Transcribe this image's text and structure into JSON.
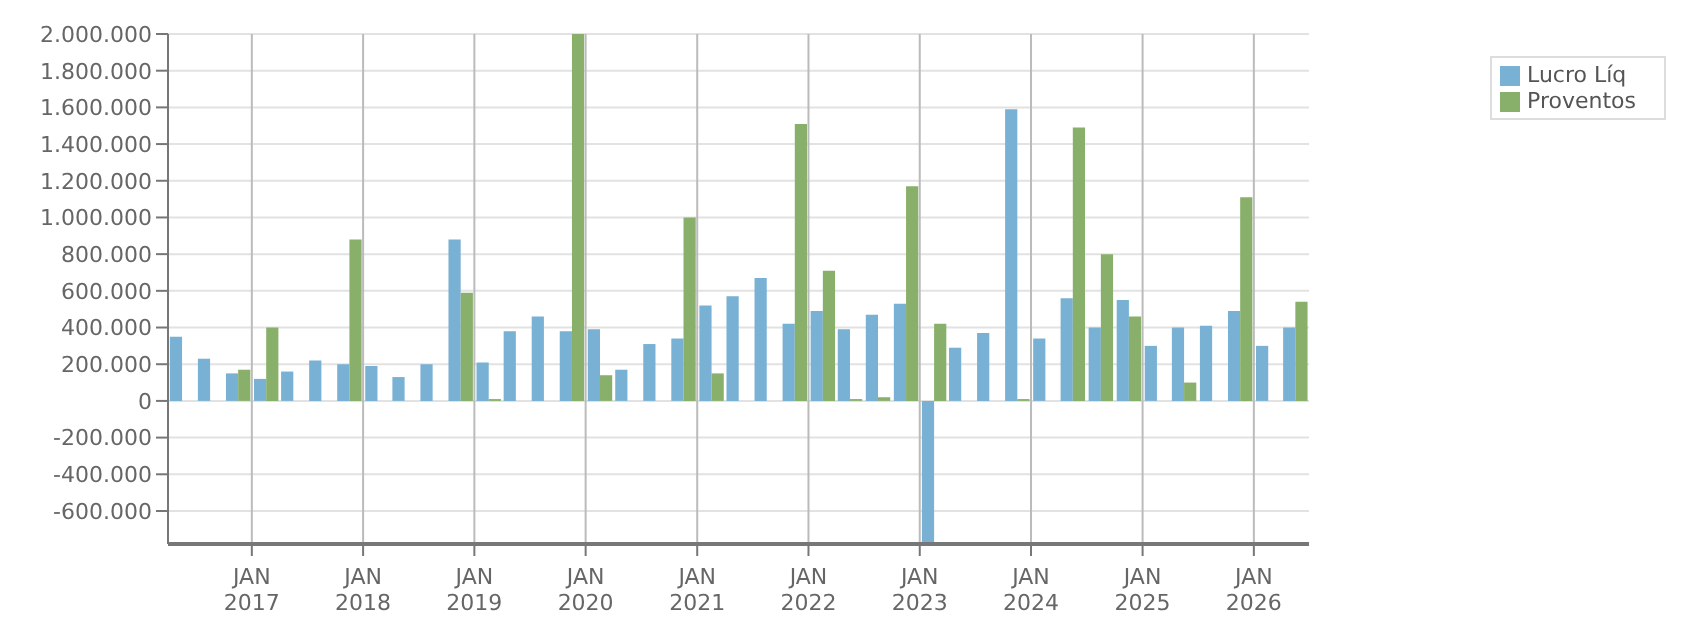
{
  "chart_data": {
    "type": "bar",
    "x": [
      "2016-05-15",
      "2016-08-15",
      "2016-11-15",
      "2017-02-15",
      "2017-05-15",
      "2017-08-15",
      "2017-11-15",
      "2018-02-15",
      "2018-05-15",
      "2018-08-15",
      "2018-11-15",
      "2019-02-15",
      "2019-05-15",
      "2019-08-15",
      "2019-11-15",
      "2020-02-15",
      "2020-05-15",
      "2020-08-15",
      "2020-11-15",
      "2021-02-15",
      "2021-05-15",
      "2021-08-15",
      "2021-11-15",
      "2022-02-15",
      "2022-05-15",
      "2022-08-15",
      "2022-11-15",
      "2023-02-15",
      "2023-05-15",
      "2023-08-15",
      "2023-11-15",
      "2024-02-15",
      "2024-05-15",
      "2024-08-15",
      "2024-11-15",
      "2025-02-15",
      "2025-05-15",
      "2025-08-15",
      "2025-11-15",
      "2026-02-15",
      "2026-05-15"
    ],
    "series": [
      {
        "name": "Lucro Líq",
        "color": "#78b1d3",
        "values": [
          350000,
          230000,
          150000,
          120000,
          160000,
          220000,
          200000,
          190000,
          130000,
          200000,
          880000,
          210000,
          380000,
          460000,
          380000,
          390000,
          170000,
          310000,
          340000,
          520000,
          570000,
          670000,
          420000,
          490000,
          390000,
          470000,
          530000,
          -780000,
          290000,
          370000,
          1590000,
          340000,
          560000,
          400000,
          550000,
          300000,
          400000,
          410000,
          490000,
          300000,
          400000
        ]
      },
      {
        "name": "Proventos",
        "color": "#88b06a",
        "values": [
          0,
          0,
          170000,
          400000,
          0,
          0,
          880000,
          0,
          0,
          0,
          590000,
          10000,
          0,
          0,
          2000000,
          140000,
          0,
          0,
          1000000,
          150000,
          0,
          0,
          1510000,
          710000,
          10000,
          20000,
          1170000,
          420000,
          0,
          0,
          10000,
          0,
          1490000,
          800000,
          460000,
          0,
          100000,
          0,
          1110000,
          0,
          540000
        ]
      }
    ],
    "xlim": [
      "2016-04",
      "2026-07"
    ],
    "xticks": [
      {
        "value": "2017-01",
        "label": "JAN\n2017"
      },
      {
        "value": "2018-01",
        "label": "JAN\n2018"
      },
      {
        "value": "2019-01",
        "label": "JAN\n2019"
      },
      {
        "value": "2020-01",
        "label": "JAN\n2020"
      },
      {
        "value": "2021-01",
        "label": "JAN\n2021"
      },
      {
        "value": "2022-01",
        "label": "JAN\n2022"
      },
      {
        "value": "2023-01",
        "label": "JAN\n2023"
      },
      {
        "value": "2024-01",
        "label": "JAN\n2024"
      },
      {
        "value": "2025-01",
        "label": "JAN\n2025"
      },
      {
        "value": "2026-01",
        "label": "JAN\n2026"
      }
    ],
    "ylim": [
      -780000,
      2000000
    ],
    "yticks": [
      {
        "value": -600000,
        "label": "-600.000"
      },
      {
        "value": -400000,
        "label": "-400.000"
      },
      {
        "value": -200000,
        "label": "-200.000"
      },
      {
        "value": 0,
        "label": "0"
      },
      {
        "value": 200000,
        "label": "200.000"
      },
      {
        "value": 400000,
        "label": "400.000"
      },
      {
        "value": 600000,
        "label": "600.000"
      },
      {
        "value": 800000,
        "label": "800.000"
      },
      {
        "value": 1000000,
        "label": "1.000.000"
      },
      {
        "value": 1200000,
        "label": "1.200.000"
      },
      {
        "value": 1400000,
        "label": "1.400.000"
      },
      {
        "value": 1600000,
        "label": "1.600.000"
      },
      {
        "value": 1800000,
        "label": "1.800.000"
      },
      {
        "value": 2000000,
        "label": "2.000.000"
      }
    ],
    "grid": true,
    "legend": "top right"
  }
}
